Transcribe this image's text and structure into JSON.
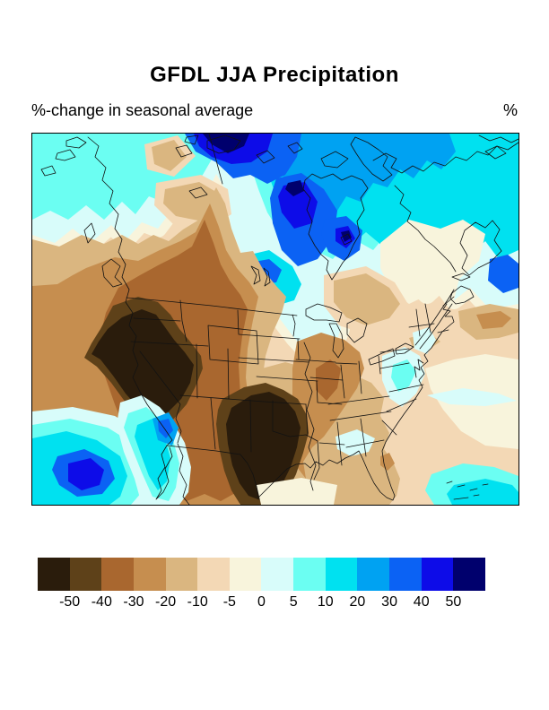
{
  "page": {
    "title": "GFDL JJA Precipitation",
    "subtitle": "%-change in seasonal average",
    "unit_label": "%"
  },
  "colorbar": {
    "tick_labels": [
      "-50",
      "-40",
      "-30",
      "-20",
      "-10",
      "-5",
      "0",
      "5",
      "10",
      "20",
      "30",
      "40",
      "50"
    ],
    "colors": [
      "#2a1c0c",
      "#5e4119",
      "#a9672f",
      "#c68e4f",
      "#dab680",
      "#f3d8b5",
      "#f8f4dc",
      "#d8fcfa",
      "#6bfef2",
      "#00e1f0",
      "#00a2f2",
      "#0b62f4",
      "#0d0ce8",
      "#00006d"
    ]
  },
  "chart_data": {
    "type": "heatmap",
    "title": "GFDL JJA Precipitation",
    "subtitle": "%-change in seasonal average",
    "units": "%",
    "region_shown": "North America (contour map with national, state and coastline boundaries)",
    "legend_levels": [
      -50,
      -40,
      -30,
      -20,
      -10,
      -5,
      0,
      5,
      10,
      20,
      30,
      40,
      50
    ],
    "legend_colors": [
      "#2a1c0c",
      "#5e4119",
      "#a9672f",
      "#c68e4f",
      "#dab680",
      "#f3d8b5",
      "#f8f4dc",
      "#d8fcfa",
      "#6bfef2",
      "#00e1f0",
      "#00a2f2",
      "#0b62f4",
      "#0d0ce8",
      "#00006d"
    ],
    "legend_position": "bottom",
    "features": [
      {
        "area": "California / Nevada / Great Basin",
        "change_pct": "below -50"
      },
      {
        "area": "Oklahoma / Texas",
        "change_pct": "below -50"
      },
      {
        "area": "Pacific Northwest and British Columbia coast",
        "change_pct": "-40 to -20"
      },
      {
        "area": "Great Plains (Dakotas / Minnesota)",
        "change_pct": "-5 to +5"
      },
      {
        "area": "Midwest and Southeast US",
        "change_pct": "-20 to -10"
      },
      {
        "area": "Mid-Atlantic coast (Virginia / Carolinas)",
        "change_pct": "0 to +10"
      },
      {
        "area": "Hudson Bay and northern Canada",
        "change_pct": "+20 to +50"
      },
      {
        "area": "Arctic coast (top of map)",
        "change_pct": "above +50"
      },
      {
        "area": "Pacific off Baja California",
        "change_pct": "+30 to +50"
      },
      {
        "area": "Gulf of California",
        "change_pct": "+10 to +40"
      },
      {
        "area": "Atlantic near Bahamas",
        "change_pct": "+10 to +20"
      },
      {
        "area": "Quebec / Labrador interior",
        "change_pct": "-10 to 0"
      }
    ]
  }
}
